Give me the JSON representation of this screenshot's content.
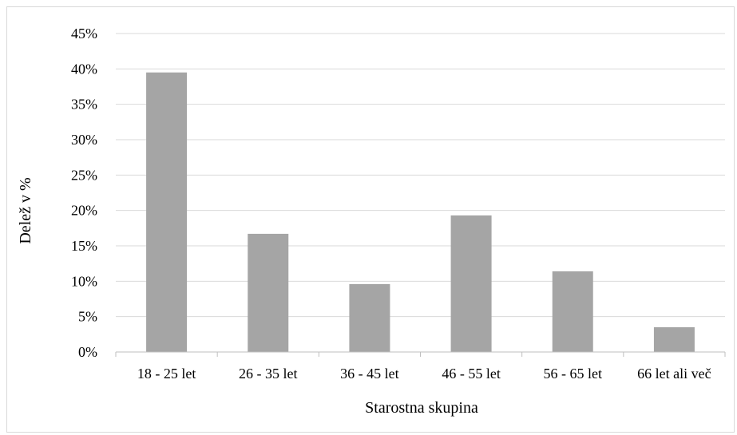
{
  "chart_data": {
    "type": "bar",
    "categories": [
      "18 - 25 let",
      "26 - 35 let",
      "36 - 45 let",
      "46 - 55 let",
      "56 - 65 let",
      "66 let ali več"
    ],
    "values": [
      39.5,
      16.7,
      9.6,
      19.3,
      11.4,
      3.5
    ],
    "xlabel": "Starostna skupina",
    "ylabel": "Delež v %",
    "ylim": [
      0,
      45
    ],
    "yticks": [
      "0%",
      "5%",
      "10%",
      "15%",
      "20%",
      "25%",
      "30%",
      "35%",
      "40%",
      "45%"
    ],
    "grid": true,
    "legend": "none",
    "colors": {
      "bar": "#a5a5a5",
      "grid": "#d9d9d9",
      "axis": "#bfbfbf"
    }
  }
}
